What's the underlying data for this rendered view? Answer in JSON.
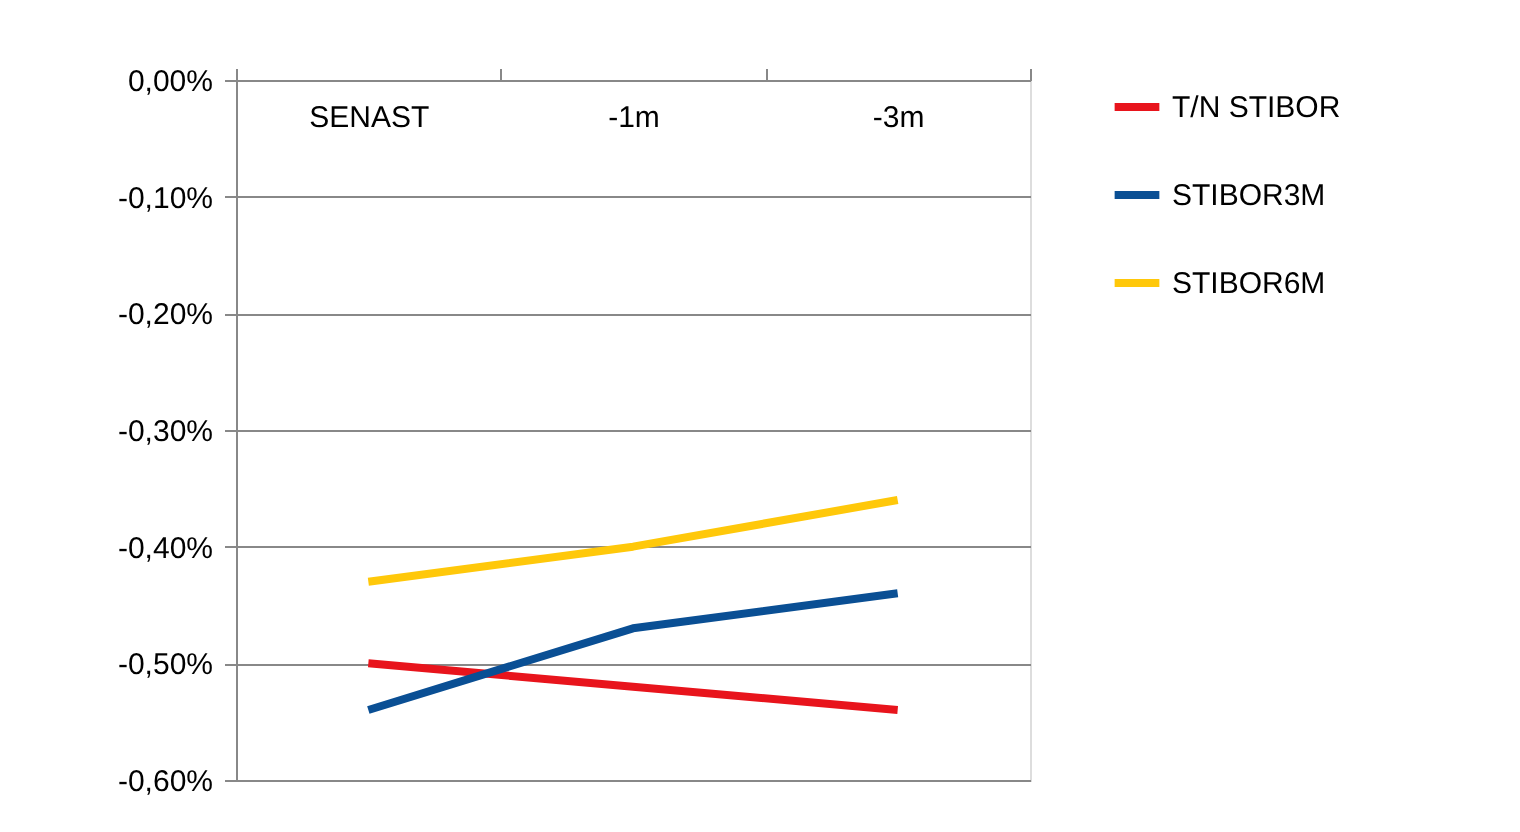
{
  "chart_data": {
    "type": "line",
    "categories": [
      "SENAST",
      "-1m",
      "-3m"
    ],
    "series": [
      {
        "name": "T/N STIBOR",
        "color": "#e8141c",
        "values": [
          -0.5,
          -0.52,
          -0.54
        ]
      },
      {
        "name": "STIBOR3M",
        "color": "#0a4f94",
        "values": [
          -0.54,
          -0.47,
          -0.44
        ]
      },
      {
        "name": "STIBOR6M",
        "color": "#ffc80a",
        "values": [
          -0.43,
          -0.4,
          -0.36
        ]
      }
    ],
    "ylim": [
      -0.6,
      0.0
    ],
    "yticks": [
      {
        "value": 0.0,
        "label": "0,00%"
      },
      {
        "value": -0.1,
        "label": "-0,10%"
      },
      {
        "value": -0.2,
        "label": "-0,20%"
      },
      {
        "value": -0.3,
        "label": "-0,30%"
      },
      {
        "value": -0.4,
        "label": "-0,40%"
      },
      {
        "value": -0.5,
        "label": "-0,50%"
      },
      {
        "value": -0.6,
        "label": "-0,60%"
      }
    ],
    "grid": "y",
    "legend": "right",
    "marker": "none",
    "line_style": "solid"
  }
}
